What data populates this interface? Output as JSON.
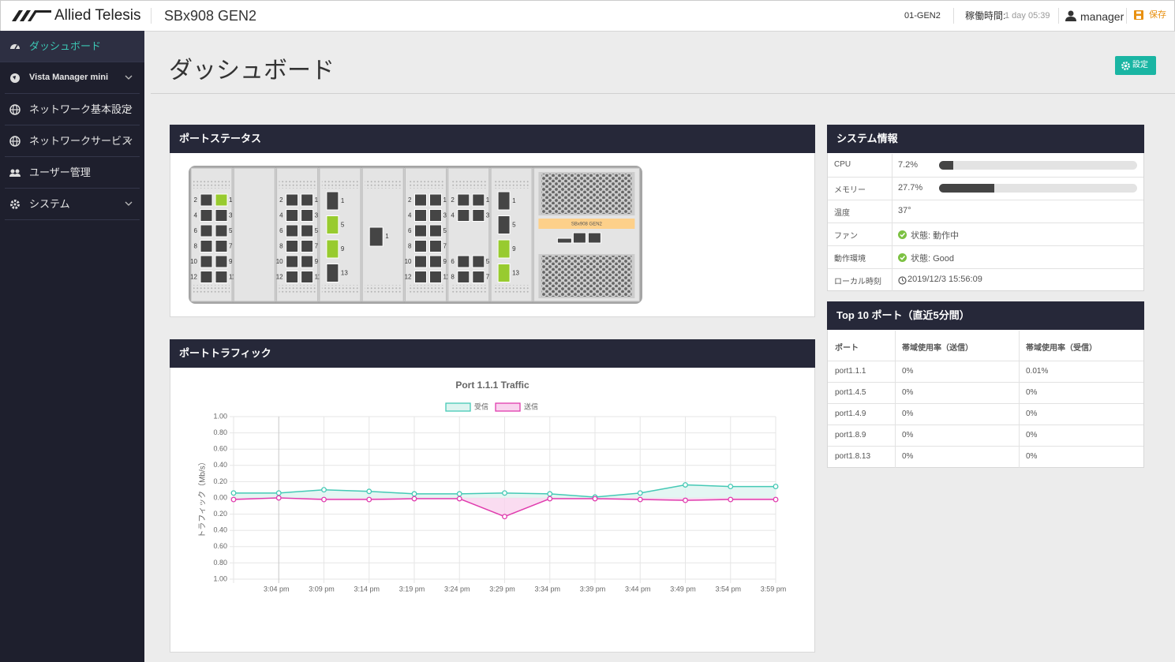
{
  "header": {
    "logo": "Allied Telesis",
    "model": "SBx908 GEN2",
    "hostname": "01-GEN2",
    "uptime_label": "稼働時間:",
    "uptime": "1 day 05:39",
    "user": "manager",
    "save": "保存"
  },
  "sidebar": {
    "items": [
      "ダッシュボード",
      "Vista Manager mini",
      "ネットワーク基本設定",
      "ネットワークサービス",
      "ユーザー管理",
      "システム"
    ]
  },
  "page": {
    "title": "ダッシュボード",
    "settings_button": "設定"
  },
  "port_status": {
    "title": "ポートステータス",
    "model_label": "SBx908 GEN2",
    "slots": [
      {
        "layout": "12port",
        "ports": [
          {
            "label": "2",
            "up": false
          },
          {
            "label": "1",
            "up": true
          },
          {
            "label": "4",
            "up": false
          },
          {
            "label": "3",
            "up": false
          },
          {
            "label": "6",
            "up": false
          },
          {
            "label": "5",
            "up": false
          },
          {
            "label": "8",
            "up": false
          },
          {
            "label": "7",
            "up": false
          },
          {
            "label": "10",
            "up": false
          },
          {
            "label": "9",
            "up": false
          },
          {
            "label": "12",
            "up": false
          },
          {
            "label": "11",
            "up": false
          }
        ]
      },
      {
        "layout": "empty",
        "ports": []
      },
      {
        "layout": "12port",
        "ports": [
          {
            "label": "2",
            "up": false
          },
          {
            "label": "1",
            "up": false
          },
          {
            "label": "4",
            "up": false
          },
          {
            "label": "3",
            "up": false
          },
          {
            "label": "6",
            "up": false
          },
          {
            "label": "5",
            "up": false
          },
          {
            "label": "8",
            "up": false
          },
          {
            "label": "7",
            "up": false
          },
          {
            "label": "10",
            "up": false
          },
          {
            "label": "9",
            "up": false
          },
          {
            "label": "12",
            "up": false
          },
          {
            "label": "11",
            "up": false
          }
        ]
      },
      {
        "layout": "4port",
        "ports": [
          {
            "label": "1",
            "up": false
          },
          {
            "label": "5",
            "up": true
          },
          {
            "label": "9",
            "up": true
          },
          {
            "label": "13",
            "up": false
          }
        ]
      },
      {
        "layout": "1port",
        "ports": [
          {
            "label": "1",
            "up": false
          }
        ]
      },
      {
        "layout": "12port",
        "ports": [
          {
            "label": "2",
            "up": false
          },
          {
            "label": "1",
            "up": false
          },
          {
            "label": "4",
            "up": false
          },
          {
            "label": "3",
            "up": false
          },
          {
            "label": "6",
            "up": false
          },
          {
            "label": "5",
            "up": false
          },
          {
            "label": "8",
            "up": false
          },
          {
            "label": "7",
            "up": false
          },
          {
            "label": "10",
            "up": false
          },
          {
            "label": "9",
            "up": false
          },
          {
            "label": "12",
            "up": false
          },
          {
            "label": "11",
            "up": false
          }
        ]
      },
      {
        "layout": "8port",
        "ports": [
          {
            "label": "2",
            "up": false
          },
          {
            "label": "1",
            "up": false
          },
          {
            "label": "4",
            "up": false
          },
          {
            "label": "3",
            "up": false
          },
          {
            "label": "6",
            "up": false
          },
          {
            "label": "5",
            "up": false
          },
          {
            "label": "8",
            "up": false
          },
          {
            "label": "7",
            "up": false
          }
        ]
      },
      {
        "layout": "4port",
        "ports": [
          {
            "label": "1",
            "up": false
          },
          {
            "label": "5",
            "up": false
          },
          {
            "label": "9",
            "up": true
          },
          {
            "label": "13",
            "up": true
          }
        ]
      }
    ]
  },
  "system_info": {
    "title": "システム情報",
    "usage_lim": [
      0,
      100
    ],
    "rows": [
      {
        "label": "CPU",
        "value": "7.2%",
        "usage": 7.2
      },
      {
        "label": "メモリー",
        "value": "27.7%",
        "usage": 27.7
      },
      {
        "label": "温度",
        "value": "37°"
      },
      {
        "label": "ファン",
        "value": "状態: 動作中",
        "status_ok": true
      },
      {
        "label": "動作環境",
        "value": "状態: Good",
        "status_ok": true
      },
      {
        "label": "ローカル時刻",
        "value": "2019/12/3 15:56:09",
        "clock": true
      }
    ]
  },
  "top_ports": {
    "title": "Top 10 ポート（直近5分間）",
    "columns": [
      "ポート",
      "帯域使用率（送信）",
      "帯域使用率（受信）"
    ],
    "rows": [
      [
        "port1.1.1",
        "0%",
        "0.01%"
      ],
      [
        "port1.4.5",
        "0%",
        "0%"
      ],
      [
        "port1.4.9",
        "0%",
        "0%"
      ],
      [
        "port1.8.9",
        "0%",
        "0%"
      ],
      [
        "port1.8.13",
        "0%",
        "0%"
      ]
    ]
  },
  "traffic": {
    "title": "ポートトラフィック"
  },
  "chart_data": {
    "type": "line",
    "title": "Port 1.1.1 Traffic",
    "y_label": "トラフィック（Mb/s）",
    "categories": [
      null,
      "3:04 pm",
      "3:09 pm",
      "3:14 pm",
      "3:19 pm",
      "3:24 pm",
      "3:29 pm",
      "3:34 pm",
      "3:39 pm",
      "3:44 pm",
      "3:49 pm",
      "3:54 pm",
      "3:59 pm"
    ],
    "series": [
      {
        "name": "受信",
        "color": "#45c9b5",
        "fill_color": "#ddf4f0",
        "values": [
          0.06,
          0.06,
          0.1,
          0.08,
          0.05,
          0.05,
          0.06,
          0.05,
          0.01,
          0.06,
          0.16,
          0.14,
          0.14
        ]
      },
      {
        "name": "送信",
        "color": "#e03cae",
        "fill_color": "#f9d3ee",
        "values": [
          -0.02,
          0,
          -0.02,
          -0.02,
          -0.01,
          -0.01,
          -0.23,
          -0.01,
          -0.01,
          -0.02,
          -0.03,
          -0.02,
          -0.02
        ]
      }
    ],
    "ylim": [
      -1,
      1
    ],
    "yticks": [
      {
        "value": 1,
        "label": "1.00"
      },
      {
        "value": 0.8,
        "label": "0.80"
      },
      {
        "value": 0.6,
        "label": "0.60"
      },
      {
        "value": 0.4,
        "label": "0.40"
      },
      {
        "value": 0.2,
        "label": "0.20"
      },
      {
        "value": 0,
        "label": "0.00"
      },
      {
        "value": -0.2,
        "label": "0.20"
      },
      {
        "value": -0.4,
        "label": "0.40"
      },
      {
        "value": -0.6,
        "label": "0.60"
      },
      {
        "value": -0.8,
        "label": "0.80"
      },
      {
        "value": -1,
        "label": "1.00"
      }
    ],
    "grid": true
  }
}
